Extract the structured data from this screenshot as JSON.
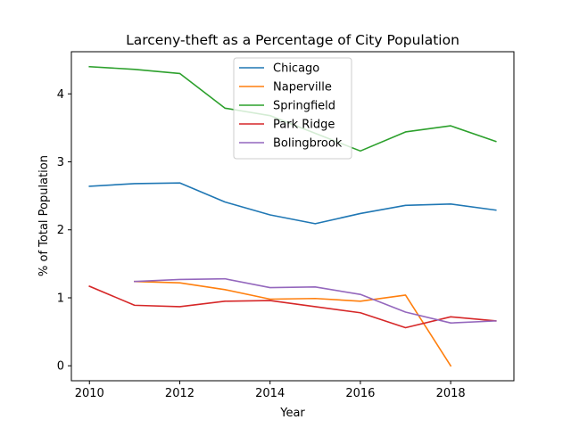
{
  "chart_data": {
    "type": "line",
    "title": "Larceny-theft as a Percentage of City Population",
    "xlabel": "Year",
    "ylabel": "% of Total Population",
    "xlim": [
      2009.6,
      2019.4
    ],
    "ylim": [
      -0.22,
      4.62
    ],
    "xticks": [
      2010,
      2012,
      2014,
      2016,
      2018
    ],
    "yticks": [
      0,
      1,
      2,
      3,
      4
    ],
    "grid": false,
    "legend_position": "top-center",
    "series": [
      {
        "name": "Chicago",
        "color": "#1f77b4",
        "x": [
          2010,
          2011,
          2012,
          2013,
          2014,
          2015,
          2016,
          2017,
          2018,
          2019
        ],
        "y": [
          2.64,
          2.68,
          2.69,
          2.41,
          2.22,
          2.09,
          2.24,
          2.36,
          2.38,
          2.29
        ]
      },
      {
        "name": "Naperville",
        "color": "#ff7f0e",
        "x": [
          2011,
          2012,
          2013,
          2014,
          2015,
          2016,
          2017,
          2018
        ],
        "y": [
          1.24,
          1.22,
          1.12,
          0.98,
          0.99,
          0.95,
          1.04,
          0.0
        ]
      },
      {
        "name": "Springfield",
        "color": "#2ca02c",
        "x": [
          2010,
          2011,
          2012,
          2013,
          2014,
          2015,
          2016,
          2017,
          2018,
          2019
        ],
        "y": [
          4.4,
          4.36,
          4.3,
          3.79,
          3.68,
          3.42,
          3.16,
          3.44,
          3.53,
          3.3
        ]
      },
      {
        "name": "Park Ridge",
        "color": "#d62728",
        "x": [
          2010,
          2011,
          2012,
          2013,
          2014,
          2015,
          2016,
          2017,
          2018,
          2019
        ],
        "y": [
          1.17,
          0.89,
          0.87,
          0.95,
          0.96,
          0.87,
          0.78,
          0.56,
          0.72,
          0.66
        ]
      },
      {
        "name": "Bolingbrook",
        "color": "#9467bd",
        "x": [
          2011,
          2012,
          2013,
          2014,
          2015,
          2016,
          2017,
          2018,
          2019
        ],
        "y": [
          1.24,
          1.27,
          1.28,
          1.15,
          1.16,
          1.05,
          0.79,
          0.63,
          0.66
        ]
      }
    ]
  }
}
